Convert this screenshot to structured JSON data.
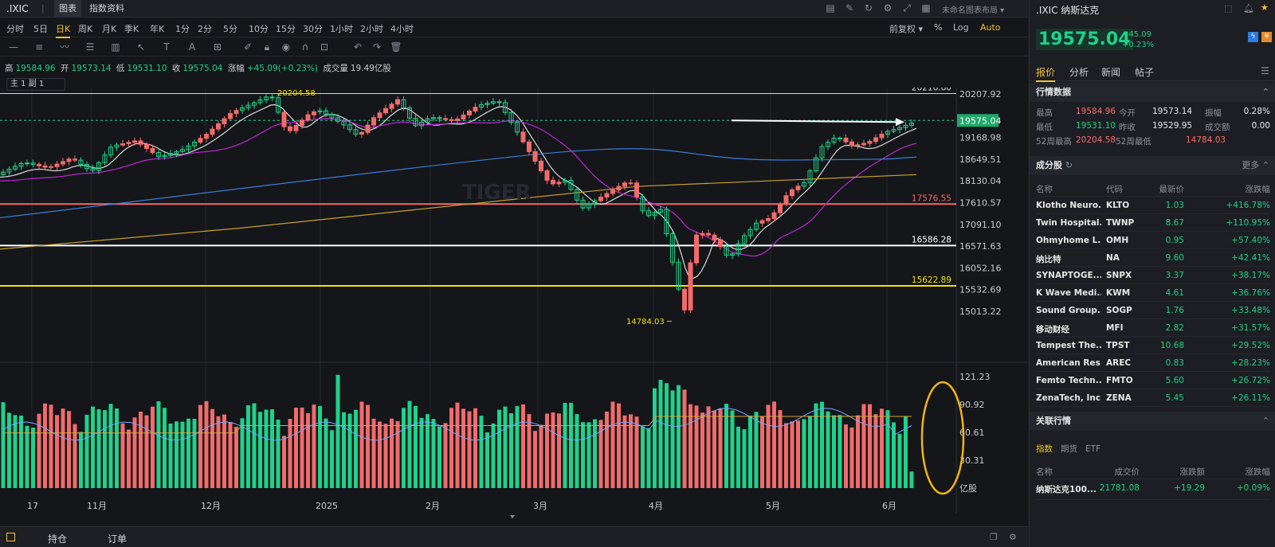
{
  "titlebar": {
    "symbol": ".IXIC",
    "separator": "|",
    "tab_chart": "图表",
    "tab_index_info": "指数资料",
    "layout_name": "未命名图表布局"
  },
  "periods": [
    "分时",
    "5日",
    "日K",
    "周K",
    "月K",
    "季K",
    "年K",
    "1分",
    "2分",
    "5分",
    "10分",
    "15分",
    "30分",
    "1小时",
    "2小时",
    "4小时"
  ],
  "active_period": "日K",
  "period_right": {
    "adjust": "前复权",
    "percent": "%",
    "log": "Log",
    "auto": "Auto"
  },
  "quote": {
    "high_label": "高",
    "high": "19584.96",
    "open_label": "开",
    "open": "19573.14",
    "low_label": "低",
    "low": "19531.10",
    "close_label": "收",
    "close": "19575.04",
    "change_label": "涨幅",
    "change": "+45.09(+0.23%)",
    "volume_label": "成交量",
    "volume": "19.49亿股"
  },
  "indicator_selector": "主 1  副 1",
  "chart": {
    "price_ticks": [
      "20207.92",
      "19168.98",
      "18649.51",
      "18130.04",
      "17610.57",
      "17091.10",
      "16571.63",
      "16052.16",
      "15532.69",
      "15013.22"
    ],
    "hlines": [
      {
        "label": "20216.60",
        "color": "#d8d8d8"
      },
      {
        "label": "17576.55",
        "color": "#f16b6b"
      },
      {
        "label": "16586.28",
        "color": "#ffffff"
      },
      {
        "label": "15622.89",
        "color": "#f1e00a"
      }
    ],
    "current_price": "19575.04",
    "high_annot": "20204.58",
    "low_annot": "14784.03",
    "vol_ticks": [
      "121.23",
      "90.92",
      "60.61",
      "30.31"
    ],
    "vol_unit": "亿股",
    "x_labels": [
      "17",
      "11月",
      "12月",
      "2025",
      "2月",
      "3月",
      "4月",
      "5月",
      "6月"
    ],
    "colors": {
      "up": "#f16b6b",
      "down": "#1fd18b",
      "ma5": "#d9d9d9",
      "ma20": "#c026d3",
      "ma60": "#3b7dd8",
      "ma200": "#c9a227"
    }
  },
  "status": {
    "positions": "持仓",
    "orders": "订单"
  },
  "right": {
    "title": ".IXIC 纳斯达克",
    "price": "19575.04",
    "chg": "+45.09",
    "chg_pct": "+0.23%",
    "tabs": [
      "报价",
      "分析",
      "新闻",
      "帖子"
    ],
    "sec_quote": "行情数据",
    "quote_rows": [
      [
        {
          "k": "最高",
          "v": "19584.96",
          "c": "r"
        },
        {
          "k": "今开",
          "v": "19573.14",
          "c": "w"
        },
        {
          "k": "振幅",
          "v": "0.28%",
          "c": "w"
        }
      ],
      [
        {
          "k": "最低",
          "v": "19531.10",
          "c": "g"
        },
        {
          "k": "昨收",
          "v": "19529.95",
          "c": "w"
        },
        {
          "k": "成交额",
          "v": "0.00",
          "c": "w"
        }
      ],
      [
        {
          "k": "52周最高",
          "v": "20204.58",
          "c": "r"
        },
        {
          "k": "52周最低",
          "v": "14784.03",
          "c": "r"
        }
      ]
    ],
    "sec_components": "成分股",
    "more": "更多",
    "stock_headers": [
      "名称",
      "代码",
      "最新价",
      "涨跌幅"
    ],
    "stocks": [
      [
        "Klotho Neuro...",
        "KLTO",
        "1.03",
        "+416.78%"
      ],
      [
        "Twin Hospital...",
        "TWNP",
        "8.67",
        "+110.95%"
      ],
      [
        "Ohmyhome L...",
        "OMH",
        "0.95",
        "+57.40%"
      ],
      [
        "纳比特",
        "NA",
        "9.60",
        "+42.41%"
      ],
      [
        "SYNAPTOGE...",
        "SNPX",
        "3.37",
        "+38.17%"
      ],
      [
        "K Wave Medi...",
        "KWM",
        "4.61",
        "+36.76%"
      ],
      [
        "Sound Group...",
        "SOGP",
        "1.76",
        "+33.48%"
      ],
      [
        "移动财经",
        "MFI",
        "2.82",
        "+31.57%"
      ],
      [
        "Tempest The...",
        "TPST",
        "10.68",
        "+29.52%"
      ],
      [
        "American Res...",
        "AREC",
        "0.83",
        "+28.23%"
      ],
      [
        "Femto Techn...",
        "FMTO",
        "5.60",
        "+26.72%"
      ],
      [
        "ZenaTech, Inc.",
        "ZENA",
        "5.45",
        "+26.11%"
      ]
    ],
    "sec_related": "关联行情",
    "rel_tabs": [
      "指数",
      "期货",
      "ETF"
    ],
    "rel_headers": [
      "名称",
      "成交价",
      "涨跌额",
      "涨跌幅"
    ],
    "rel_rows": [
      [
        "纳斯达克100...",
        "21781.08",
        "+19.29",
        "+0.09%"
      ]
    ]
  }
}
